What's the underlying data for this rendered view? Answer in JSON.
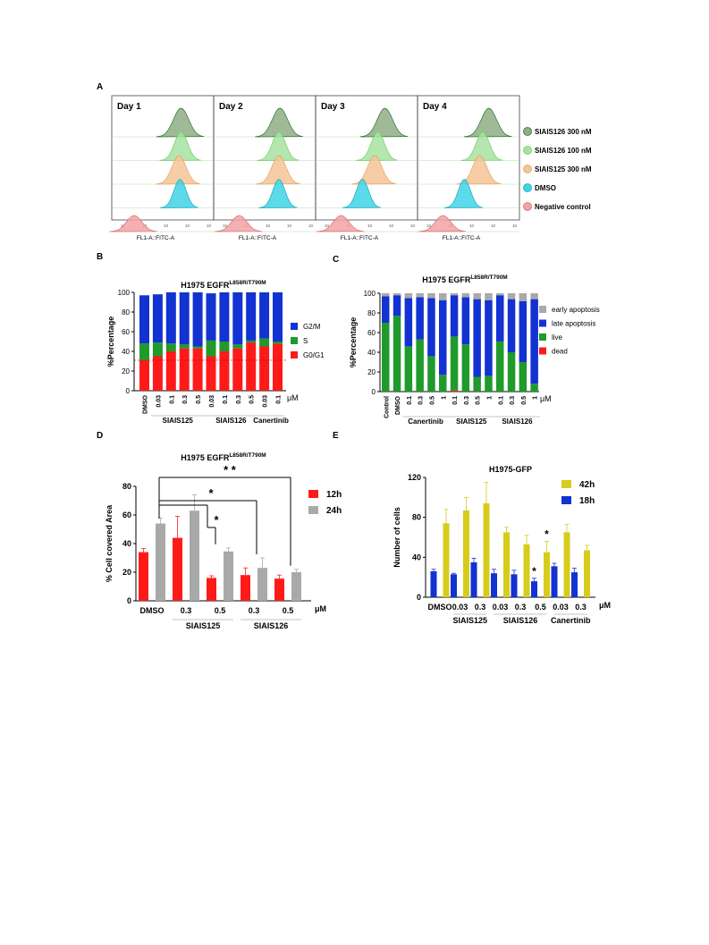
{
  "panel_letters": [
    "A",
    "B",
    "C",
    "D",
    "E"
  ],
  "chart_data": [
    {
      "panel": "A",
      "type": "histogram",
      "day_labels": [
        "Day 1",
        "Day 2",
        "Day 3",
        "Day 4"
      ],
      "xlabel": "FL1-A::FITC-A",
      "legend": [
        {
          "name": "SIAIS126 300 nM",
          "color": "#8fae86"
        },
        {
          "name": "SIAIS126 100 nM",
          "color": "#a6e3a1"
        },
        {
          "name": "SIAIS125 300 nM",
          "color": "#f6c495"
        },
        {
          "name": "DMSO",
          "color": "#3fd3e6"
        },
        {
          "name": "Negative control",
          "color": "#f2a3a3"
        }
      ]
    },
    {
      "panel": "B",
      "type": "bar",
      "stacked": true,
      "title": "H1975 EGFR",
      "title_sup": "L858R/T790M",
      "ylabel": "%Percentage",
      "ylim": [
        0,
        100
      ],
      "yticks": [
        0,
        20,
        40,
        60,
        80,
        100
      ],
      "unit": "μM",
      "categories": [
        "DMSO",
        "0.03",
        "0.1",
        "0.3",
        "0.5",
        "0.03",
        "0.1",
        "0.3",
        "0.5",
        "0.03",
        "0.1"
      ],
      "groups": [
        {
          "name": "SIAIS125",
          "from": 1,
          "to": 4
        },
        {
          "name": "SIAIS126",
          "from": 5,
          "to": 8
        },
        {
          "name": "Canertinib",
          "from": 9,
          "to": 10
        }
      ],
      "series": [
        {
          "name": "G0/G1",
          "color": "#ff1a1a",
          "values": [
            31,
            35,
            40,
            43,
            43,
            35,
            40,
            43,
            49,
            45,
            48
          ]
        },
        {
          "name": "S",
          "color": "#1f9a2b",
          "values": [
            17,
            14,
            8,
            4,
            2,
            16,
            10,
            4,
            2,
            8,
            2
          ]
        },
        {
          "name": "G2/M",
          "color": "#1232d1",
          "values": [
            49,
            49,
            52,
            53,
            55,
            48,
            50,
            53,
            49,
            47,
            50
          ]
        }
      ],
      "legend_order": [
        "G2/M",
        "S",
        "G0/G1"
      ]
    },
    {
      "panel": "C",
      "type": "bar",
      "stacked": true,
      "title": "H1975 EGFR",
      "title_sup": "L858R/T790M",
      "ylabel": "%Percentage",
      "ylim": [
        0,
        100
      ],
      "yticks": [
        0,
        20,
        40,
        60,
        80,
        100
      ],
      "unit": "μM",
      "categories": [
        "Control",
        "DMSO",
        "0.1",
        "0.3",
        "0.5",
        "1",
        "0.1",
        "0.3",
        "0.5",
        "1",
        "0.1",
        "0.3",
        "0.5",
        "1"
      ],
      "groups": [
        {
          "name": "Canertinib",
          "from": 2,
          "to": 5
        },
        {
          "name": "SIAIS125",
          "from": 6,
          "to": 9
        },
        {
          "name": "SIAIS126",
          "from": 10,
          "to": 13
        }
      ],
      "series": [
        {
          "name": "dead",
          "color": "#ff1a1a",
          "values": [
            0,
            0,
            0,
            0,
            0,
            0,
            1,
            0,
            0,
            0,
            0,
            0,
            0,
            0
          ]
        },
        {
          "name": "live",
          "color": "#1f9a2b",
          "values": [
            70,
            77,
            46,
            53,
            36,
            17,
            55,
            48,
            15,
            16,
            51,
            40,
            30,
            8
          ]
        },
        {
          "name": "late apoptosis",
          "color": "#1232d1",
          "values": [
            27,
            21,
            49,
            43,
            59,
            76,
            42,
            48,
            79,
            77,
            47,
            54,
            62,
            86
          ]
        },
        {
          "name": "early apoptosis",
          "color": "#a9a9a9",
          "values": [
            3,
            2,
            5,
            4,
            5,
            7,
            2,
            4,
            6,
            7,
            2,
            6,
            8,
            6
          ]
        }
      ],
      "legend_order": [
        "early apoptosis",
        "late apoptosis",
        "live",
        "dead"
      ]
    },
    {
      "panel": "D",
      "type": "bar",
      "title": "H1975 EGFR",
      "title_sup": "L858R/T790M",
      "ylabel": "% Cell covered Area",
      "ylim": [
        0,
        80
      ],
      "yticks": [
        0,
        20,
        40,
        60,
        80
      ],
      "unit": "μM",
      "categories": [
        "DMSO",
        "0.3",
        "0.5",
        "0.3",
        "0.5"
      ],
      "groups": [
        {
          "name": "SIAIS125",
          "from": 1,
          "to": 2
        },
        {
          "name": "SIAIS126",
          "from": 3,
          "to": 4
        }
      ],
      "series": [
        {
          "name": "12h",
          "color": "#ff1a1a",
          "values": [
            34,
            44,
            16,
            18,
            15.5
          ],
          "errors": [
            2.5,
            15,
            1.5,
            5,
            2.5
          ]
        },
        {
          "name": "24h",
          "color": "#a9a9a9",
          "values": [
            54,
            63,
            34.5,
            23,
            20
          ],
          "errors": [
            4,
            11,
            2.5,
            7,
            2
          ]
        }
      ],
      "significance": [
        {
          "from": 0,
          "to": 2,
          "label": "*"
        },
        {
          "from": 0,
          "to": 3,
          "label": "*"
        },
        {
          "from": 0,
          "to": 4,
          "label": "* *"
        }
      ]
    },
    {
      "panel": "E",
      "type": "bar",
      "title": "H1975-GFP",
      "ylabel": "Number of cells",
      "ylim": [
        0,
        120
      ],
      "yticks": [
        0,
        40,
        80,
        120
      ],
      "unit": "μM",
      "categories": [
        "DMSO",
        "0.03",
        "0.3",
        "0.03",
        "0.3",
        "0.5",
        "0.03",
        "0.3"
      ],
      "groups": [
        {
          "name": "SIAIS125",
          "from": 1,
          "to": 2
        },
        {
          "name": "SIAIS126",
          "from": 3,
          "to": 5
        },
        {
          "name": "Canertinib",
          "from": 6,
          "to": 7
        }
      ],
      "series": [
        {
          "name": "18h",
          "color": "#1232d1",
          "values": [
            26,
            23,
            35,
            24,
            23,
            16,
            31,
            25
          ],
          "errors": [
            2,
            1,
            4,
            4,
            4,
            3,
            3,
            4
          ]
        },
        {
          "name": "42h",
          "color": "#d7cc1c",
          "values": [
            74,
            87,
            94,
            65,
            53,
            45,
            65,
            47
          ],
          "errors": [
            14,
            13,
            21,
            5,
            9,
            11,
            8,
            5
          ]
        }
      ],
      "legend_order": [
        "42h",
        "18h"
      ],
      "significance_marks": [
        {
          "index": 5,
          "series": "42h",
          "label": "*"
        },
        {
          "index": 5,
          "series": "18h",
          "label": "*"
        }
      ]
    }
  ]
}
